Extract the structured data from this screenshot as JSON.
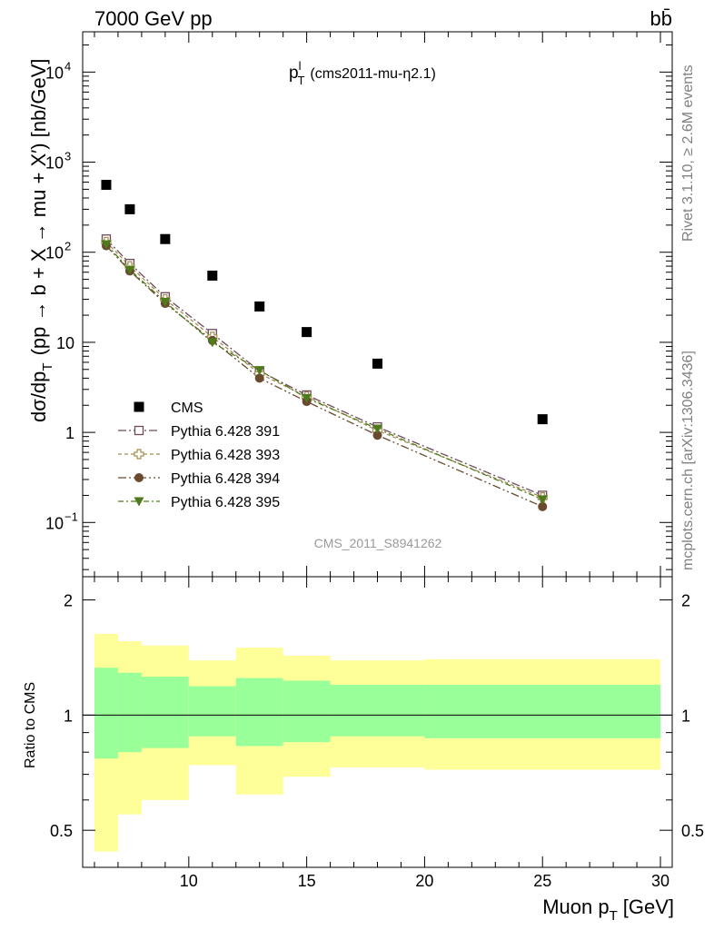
{
  "header": {
    "energy_label": "7000 GeV pp",
    "process_label": "bb̄"
  },
  "plot_title": {
    "main": "p",
    "sup": "l",
    "sub": "T",
    "detail": "(cms2011-mu-η2.1)"
  },
  "side_labels": {
    "rivet": "Rivet 3.1.10, ≥ 2.6M events",
    "mcplots": "mcplots.cern.ch [arXiv:1306.3436]"
  },
  "watermark": "CMS_2011_S8941262",
  "axes": {
    "ylabel_main": "dσ/dp",
    "ylabel_main_sub": "T",
    "ylabel_main_rest": "(pp → b + X → mu + X′) [nb/GeV]",
    "ylabel_ratio": "Ratio to CMS",
    "xlabel": "Muon p",
    "xlabel_sub": "T",
    "xlabel_unit": "[GeV]",
    "x_ticks": [
      "10",
      "15",
      "20",
      "25",
      "30"
    ],
    "y_ticks_main": [
      {
        "value": 10000,
        "base": "10",
        "exp": "4"
      },
      {
        "value": 1000,
        "base": "10",
        "exp": "3"
      },
      {
        "value": 100,
        "base": "10",
        "exp": "2"
      },
      {
        "value": 10,
        "base": "10",
        "exp": ""
      },
      {
        "value": 1,
        "base": "1",
        "exp": ""
      },
      {
        "value": 0.1,
        "base": "10",
        "exp": "−1"
      }
    ],
    "y_ticks_ratio": [
      "2",
      "1",
      "0.5"
    ]
  },
  "chart_data": {
    "type": "scatter",
    "x_scale": "linear",
    "y_scale": "log",
    "xlim": [
      5.5,
      30.5
    ],
    "ylim": [
      0.025,
      28000
    ],
    "ratio_ylim": [
      0.4,
      2.3
    ],
    "ratio_y_scale": "log",
    "legend_position": "bottom-left",
    "bins": [
      [
        6,
        7
      ],
      [
        7,
        8
      ],
      [
        8,
        10
      ],
      [
        10,
        12
      ],
      [
        12,
        14
      ],
      [
        14,
        16
      ],
      [
        16,
        20
      ],
      [
        20,
        30
      ]
    ],
    "x": [
      6.5,
      7.5,
      9.0,
      11.0,
      13.0,
      15.0,
      18.0,
      25.0
    ],
    "series": [
      {
        "name": "CMS",
        "color": "#000000",
        "marker": "square-filled",
        "values": [
          560,
          300,
          140,
          55,
          25,
          13,
          5.8,
          1.4
        ]
      },
      {
        "name": "Pythia 6.428 391",
        "color": "#6e4a5c",
        "marker": "square-open",
        "dash": "9,3,2,3",
        "values": [
          140,
          75,
          32,
          12.5,
          4.8,
          2.6,
          1.15,
          0.2
        ]
      },
      {
        "name": "Pythia 6.428 393",
        "color": "#a09050",
        "marker": "cross-open",
        "dash": "4,3",
        "values": [
          130,
          70,
          30,
          11.5,
          4.5,
          2.5,
          1.05,
          0.19
        ]
      },
      {
        "name": "Pythia 6.428 394",
        "color": "#6a4a2e",
        "marker": "circle-filled",
        "dash": "9,3,2,3,2,3",
        "values": [
          118,
          62,
          27,
          10.5,
          4.0,
          2.2,
          0.93,
          0.15
        ]
      },
      {
        "name": "Pythia 6.428 395",
        "color": "#4d7a1a",
        "marker": "triangle-down-filled",
        "dash": "6,3,2,3",
        "values": [
          122,
          64,
          28,
          10,
          4.9,
          2.4,
          1.1,
          0.18
        ]
      }
    ],
    "ratio_bands": {
      "outer_color": "#ffff99",
      "inner_color": "#99ff99",
      "outer": [
        [
          0.44,
          1.63
        ],
        [
          0.55,
          1.56
        ],
        [
          0.6,
          1.52
        ],
        [
          0.74,
          1.39
        ],
        [
          0.62,
          1.5
        ],
        [
          0.69,
          1.43
        ],
        [
          0.73,
          1.39
        ],
        [
          0.72,
          1.4
        ]
      ],
      "inner": [
        [
          0.77,
          1.33
        ],
        [
          0.8,
          1.29
        ],
        [
          0.82,
          1.26
        ],
        [
          0.88,
          1.19
        ],
        [
          0.83,
          1.25
        ],
        [
          0.85,
          1.23
        ],
        [
          0.88,
          1.2
        ],
        [
          0.87,
          1.2
        ]
      ]
    }
  }
}
